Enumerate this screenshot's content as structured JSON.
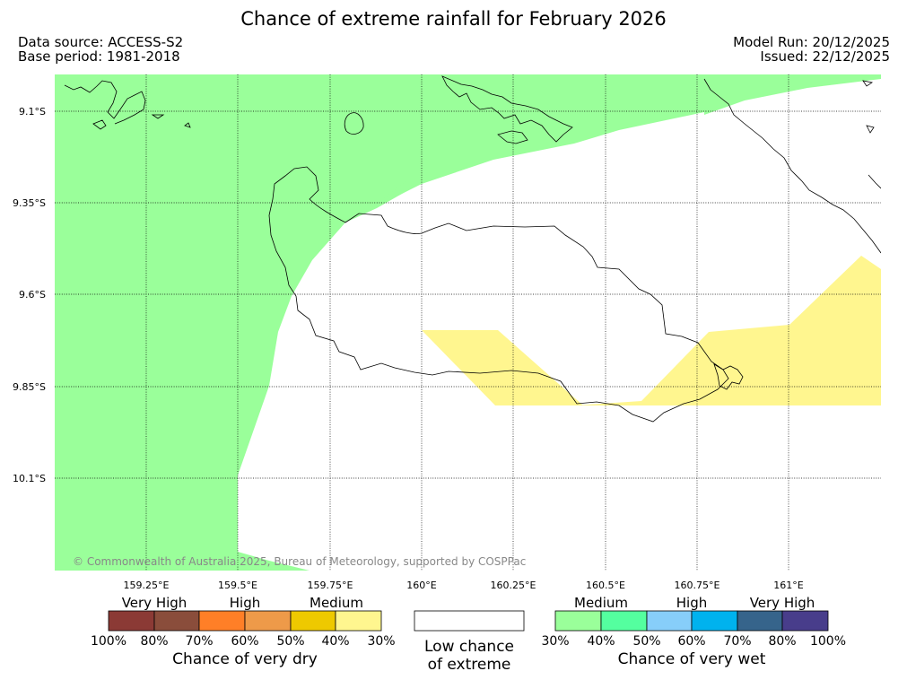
{
  "title": "Chance of extreme rainfall for February 2026",
  "meta": {
    "data_source": "Data source: ACCESS-S2",
    "base_period": "Base period: 1981-2018",
    "model_run": "Model Run: 20/12/2025",
    "issued": "Issued: 22/12/2025"
  },
  "axes": {
    "lat_labels": [
      "9.1°S",
      "9.35°S",
      "9.6°S",
      "9.85°S",
      "10.1°S"
    ],
    "lon_labels": [
      "159.25°E",
      "159.5°E",
      "159.75°E",
      "160°E",
      "160.25°E",
      "160.5°E",
      "160.75°E",
      "161°E"
    ]
  },
  "copyright": "© Commonwealth of Australia 2025, Bureau of Meteorology, supported by COSPPac",
  "legend": {
    "dry": {
      "categories": [
        "Very High",
        "High",
        "Medium"
      ],
      "ticks": [
        "100%",
        "80%",
        "70%",
        "60%",
        "50%",
        "40%",
        "30%"
      ],
      "colors": [
        "#8b3a35",
        "#8a4d3b",
        "#ff7f27",
        "#ee9a49",
        "#eec900",
        "#fff68f"
      ],
      "caption": "Chance of very dry"
    },
    "none": {
      "caption_line1": "Low chance",
      "caption_line2": "of extreme"
    },
    "wet": {
      "categories": [
        "Medium",
        "High",
        "Very High"
      ],
      "ticks": [
        "30%",
        "40%",
        "50%",
        "60%",
        "70%",
        "80%",
        "100%"
      ],
      "colors": [
        "#9aff9a",
        "#54ff9f",
        "#87cefa",
        "#00b2ee",
        "#36648b",
        "#483d8b"
      ],
      "caption": "Chance of very wet"
    }
  },
  "map": {
    "wet_medium_color": "#9aff9a",
    "dry_medium_color": "#fff68f",
    "coast_color": "#000000"
  }
}
